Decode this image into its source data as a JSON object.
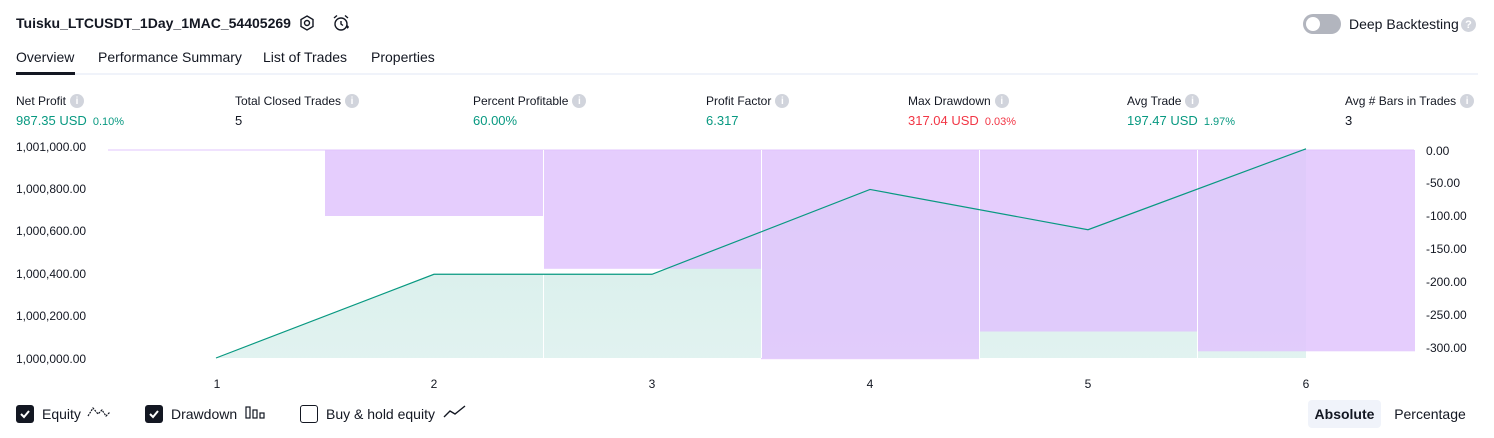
{
  "header": {
    "title": "Tuisku_LTCUSDT_1Day_1MAC_54405269",
    "deep_backtesting_label": "Deep Backtesting",
    "deep_backtesting_enabled": false
  },
  "tabs": [
    {
      "label": "Overview",
      "active": true
    },
    {
      "label": "Performance Summary",
      "active": false
    },
    {
      "label": "List of Trades",
      "active": false
    },
    {
      "label": "Properties",
      "active": false
    }
  ],
  "stats": [
    {
      "label": "Net Profit",
      "value": "987.35 USD",
      "pct": "0.10%",
      "color": "#089981"
    },
    {
      "label": "Total Closed Trades",
      "value": "5",
      "pct": "",
      "color": "#131722"
    },
    {
      "label": "Percent Profitable",
      "value": "60.00%",
      "pct": "",
      "color": "#089981"
    },
    {
      "label": "Profit Factor",
      "value": "6.317",
      "pct": "",
      "color": "#089981"
    },
    {
      "label": "Max Drawdown",
      "value": "317.04 USD",
      "pct": "0.03%",
      "color": "#f23645"
    },
    {
      "label": "Avg Trade",
      "value": "197.47 USD",
      "pct": "1.97%",
      "color": "#089981"
    },
    {
      "label": "Avg # Bars in Trades",
      "value": "3",
      "pct": "",
      "color": "#131722"
    }
  ],
  "chart_data": {
    "type": "area",
    "x": [
      "1",
      "2",
      "3",
      "4",
      "5",
      "6"
    ],
    "left_axis_ticks": [
      "1,001,000.00",
      "1,000,800.00",
      "1,000,600.00",
      "1,000,400.00",
      "1,000,200.00",
      "1,000,000.00"
    ],
    "right_axis_ticks": [
      "0.00",
      "-50.00",
      "-100.00",
      "-150.00",
      "-200.00",
      "-250.00",
      "-300.00"
    ],
    "ylim_left": [
      1000000,
      1001000
    ],
    "ylim_right": [
      -315,
      0
    ],
    "series": [
      {
        "name": "Equity",
        "type": "area",
        "axis": "left",
        "color": "#089981",
        "values": [
          1000000,
          1000395,
          1000395,
          1000795,
          1000605,
          1000987
        ]
      },
      {
        "name": "Drawdown",
        "type": "bar",
        "axis": "right",
        "color": "#e1c4fd",
        "values": [
          0,
          -100,
          -180,
          -317,
          -275,
          -305
        ]
      }
    ]
  },
  "legend": {
    "equity_label": "Equity",
    "drawdown_label": "Drawdown",
    "buyhold_label": "Buy & hold equity",
    "equity_checked": true,
    "drawdown_checked": true,
    "buyhold_checked": false
  },
  "mode": {
    "absolute_label": "Absolute",
    "percentage_label": "Percentage",
    "selected": "Absolute"
  }
}
